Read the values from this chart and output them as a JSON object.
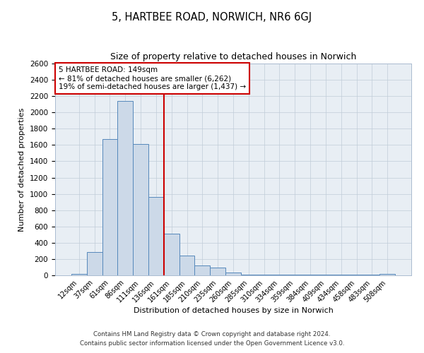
{
  "title": "5, HARTBEE ROAD, NORWICH, NR6 6GJ",
  "subtitle": "Size of property relative to detached houses in Norwich",
  "xlabel": "Distribution of detached houses by size in Norwich",
  "ylabel": "Number of detached properties",
  "bar_labels": [
    "12sqm",
    "37sqm",
    "61sqm",
    "86sqm",
    "111sqm",
    "136sqm",
    "161sqm",
    "185sqm",
    "210sqm",
    "235sqm",
    "260sqm",
    "285sqm",
    "310sqm",
    "334sqm",
    "359sqm",
    "384sqm",
    "409sqm",
    "434sqm",
    "458sqm",
    "483sqm",
    "508sqm"
  ],
  "bar_heights": [
    20,
    290,
    1670,
    2140,
    1610,
    960,
    510,
    245,
    125,
    95,
    35,
    10,
    5,
    5,
    5,
    5,
    5,
    5,
    5,
    5,
    20
  ],
  "bar_color": "#ccd9e8",
  "bar_edge_color": "#5588bb",
  "vline_x": 6.0,
  "vline_color": "#cc0000",
  "annotation_title": "5 HARTBEE ROAD: 149sqm",
  "annotation_line1": "← 81% of detached houses are smaller (6,262)",
  "annotation_line2": "19% of semi-detached houses are larger (1,437) →",
  "annotation_box_color": "#cc0000",
  "ylim": [
    0,
    2600
  ],
  "yticks": [
    0,
    200,
    400,
    600,
    800,
    1000,
    1200,
    1400,
    1600,
    1800,
    2000,
    2200,
    2400,
    2600
  ],
  "footnote1": "Contains HM Land Registry data © Crown copyright and database right 2024.",
  "footnote2": "Contains public sector information licensed under the Open Government Licence v3.0.",
  "figsize": [
    6.0,
    5.0
  ],
  "dpi": 100
}
